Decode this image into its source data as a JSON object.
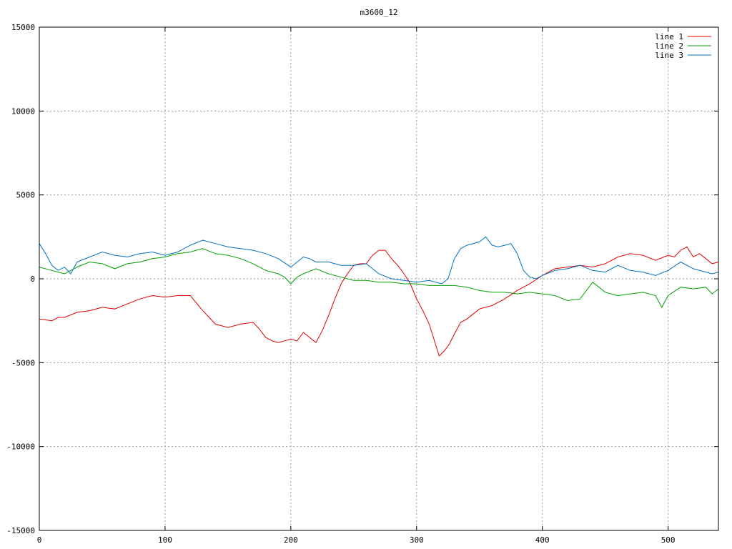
{
  "chart_data": {
    "type": "line",
    "title": "m3600_12",
    "xlabel": "",
    "ylabel": "",
    "xlim": [
      0,
      540
    ],
    "ylim": [
      -15000,
      15000
    ],
    "xticks": [
      0,
      100,
      200,
      300,
      400,
      500
    ],
    "yticks": [
      15000,
      10000,
      5000,
      0,
      -5000,
      -10000,
      -15000
    ],
    "xtick_labels": [
      "0",
      "100",
      "200",
      "300",
      "400",
      "500"
    ],
    "ytick_labels": [
      "15000",
      "10000",
      "5000",
      "0",
      "-5000",
      "-10000",
      "-15000"
    ],
    "grid": true,
    "legend_position": "top-right",
    "series": [
      {
        "name": "line 1",
        "color": "#e00000",
        "x": [
          0,
          10,
          15,
          20,
          30,
          40,
          50,
          60,
          70,
          80,
          90,
          100,
          110,
          120,
          130,
          140,
          150,
          160,
          170,
          175,
          180,
          185,
          190,
          195,
          200,
          205,
          210,
          215,
          220,
          225,
          230,
          235,
          240,
          245,
          250,
          255,
          260,
          265,
          270,
          275,
          280,
          285,
          290,
          295,
          300,
          305,
          310,
          315,
          318,
          322,
          326,
          330,
          335,
          340,
          345,
          350,
          360,
          370,
          380,
          390,
          400,
          410,
          420,
          430,
          440,
          450,
          460,
          470,
          480,
          490,
          500,
          505,
          510,
          515,
          520,
          525,
          530,
          535,
          540
        ],
        "y": [
          -2400,
          -2500,
          -2300,
          -2300,
          -2000,
          -1900,
          -1700,
          -1800,
          -1500,
          -1200,
          -1000,
          -1100,
          -1000,
          -1000,
          -1900,
          -2700,
          -2900,
          -2700,
          -2600,
          -3000,
          -3500,
          -3700,
          -3800,
          -3700,
          -3600,
          -3700,
          -3200,
          -3500,
          -3800,
          -3100,
          -2200,
          -1200,
          -300,
          300,
          800,
          900,
          900,
          1400,
          1700,
          1700,
          1200,
          800,
          300,
          -300,
          -1200,
          -1900,
          -2700,
          -3900,
          -4600,
          -4300,
          -3900,
          -3300,
          -2600,
          -2400,
          -2100,
          -1800,
          -1600,
          -1200,
          -700,
          -300,
          200,
          600,
          700,
          800,
          700,
          900,
          1300,
          1500,
          1400,
          1100,
          1400,
          1300,
          1700,
          1900,
          1300,
          1500,
          1200,
          900,
          1000
        ]
      },
      {
        "name": "line 2",
        "color": "#00a000",
        "x": [
          0,
          10,
          20,
          30,
          40,
          50,
          60,
          70,
          80,
          90,
          100,
          110,
          120,
          130,
          140,
          150,
          160,
          170,
          180,
          190,
          195,
          200,
          205,
          210,
          220,
          230,
          240,
          250,
          260,
          270,
          280,
          290,
          300,
          310,
          320,
          330,
          340,
          350,
          360,
          370,
          380,
          390,
          400,
          410,
          420,
          430,
          440,
          450,
          460,
          470,
          480,
          490,
          495,
          500,
          510,
          520,
          530,
          535,
          540
        ],
        "y": [
          700,
          500,
          300,
          700,
          1000,
          900,
          600,
          900,
          1000,
          1200,
          1300,
          1500,
          1600,
          1800,
          1500,
          1400,
          1200,
          900,
          500,
          300,
          100,
          -300,
          100,
          300,
          600,
          300,
          100,
          -100,
          -100,
          -200,
          -200,
          -300,
          -300,
          -400,
          -400,
          -400,
          -500,
          -700,
          -800,
          -800,
          -900,
          -800,
          -900,
          -1000,
          -1300,
          -1200,
          -200,
          -800,
          -1000,
          -900,
          -800,
          -1000,
          -1700,
          -1000,
          -500,
          -600,
          -500,
          -900,
          -600
        ]
      },
      {
        "name": "line 3",
        "color": "#0070c0",
        "x": [
          0,
          5,
          10,
          15,
          20,
          25,
          30,
          40,
          50,
          60,
          70,
          80,
          90,
          100,
          110,
          120,
          130,
          140,
          150,
          160,
          170,
          180,
          190,
          200,
          205,
          210,
          215,
          220,
          230,
          240,
          250,
          260,
          270,
          280,
          290,
          300,
          310,
          320,
          325,
          330,
          335,
          340,
          350,
          355,
          360,
          365,
          370,
          375,
          380,
          385,
          390,
          395,
          400,
          410,
          420,
          430,
          440,
          450,
          460,
          470,
          480,
          490,
          500,
          510,
          520,
          530,
          535,
          540
        ],
        "y": [
          2100,
          1500,
          800,
          500,
          700,
          300,
          1000,
          1300,
          1600,
          1400,
          1300,
          1500,
          1600,
          1400,
          1600,
          2000,
          2300,
          2100,
          1900,
          1800,
          1700,
          1500,
          1200,
          700,
          1000,
          1300,
          1200,
          1000,
          1000,
          800,
          800,
          900,
          300,
          0,
          -100,
          -200,
          -100,
          -300,
          0,
          1200,
          1800,
          2000,
          2200,
          2500,
          2000,
          1900,
          2000,
          2100,
          1500,
          500,
          100,
          0,
          200,
          500,
          600,
          800,
          500,
          400,
          800,
          500,
          400,
          200,
          500,
          1000,
          600,
          400,
          300,
          400
        ]
      }
    ]
  }
}
